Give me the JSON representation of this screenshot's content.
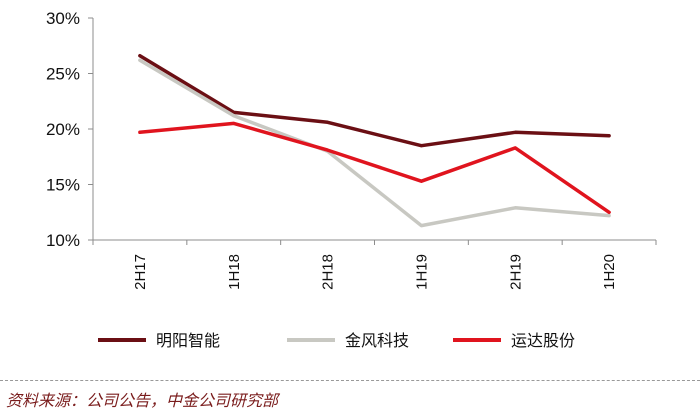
{
  "chart_data": {
    "type": "line",
    "categories": [
      "2H17",
      "1H18",
      "2H18",
      "1H19",
      "2H19",
      "1H20"
    ],
    "yticks": [
      "10%",
      "15%",
      "20%",
      "25%",
      "30%"
    ],
    "ylim": [
      10,
      30
    ],
    "grid": false,
    "legend_position": "bottom",
    "series": [
      {
        "name": "明阳智能",
        "color": "#6b0f14",
        "values": [
          26.6,
          21.5,
          20.6,
          18.5,
          19.7,
          19.4
        ]
      },
      {
        "name": "金风科技",
        "color": "#c8c8c2",
        "values": [
          26.2,
          21.2,
          18.0,
          11.3,
          12.9,
          12.2
        ]
      },
      {
        "name": "运达股份",
        "color": "#e0141e",
        "values": [
          19.7,
          20.5,
          18.1,
          15.3,
          18.3,
          12.5
        ]
      }
    ]
  },
  "source": "资料来源：公司公告，中金公司研究部"
}
